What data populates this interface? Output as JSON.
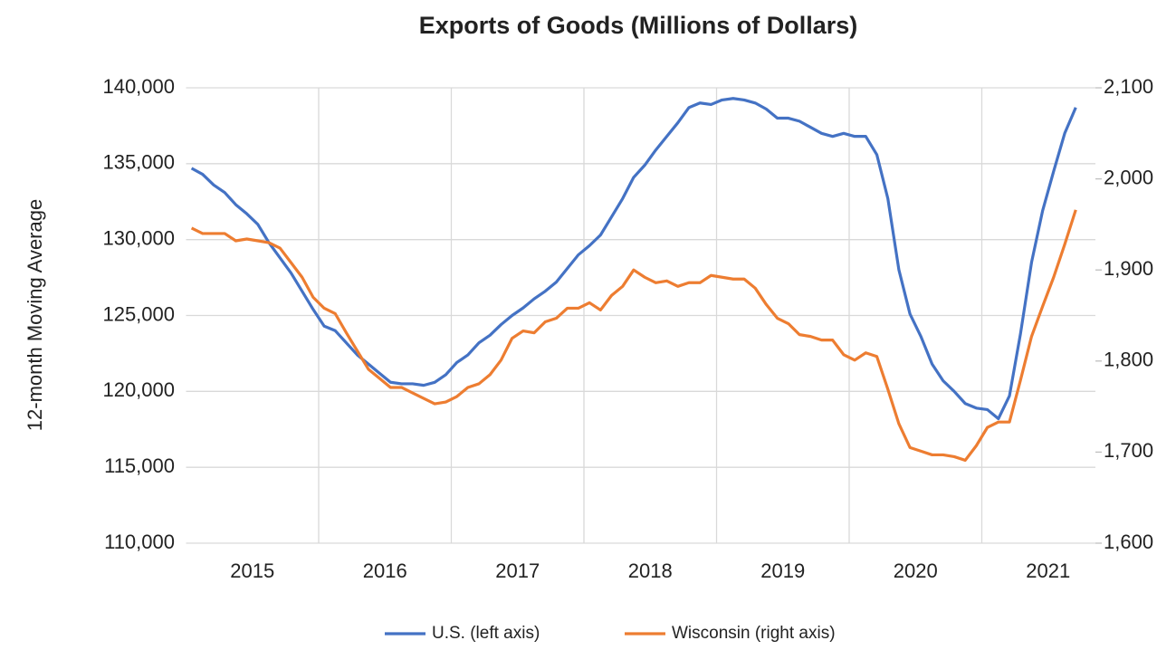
{
  "chart_data": {
    "type": "line",
    "title": "Exports of Goods (Millions of Dollars)",
    "y_label": "12-month Moving Average",
    "categories": [
      "2015",
      null,
      null,
      null,
      null,
      null,
      null,
      null,
      null,
      null,
      null,
      null,
      "2016",
      null,
      null,
      null,
      null,
      null,
      null,
      null,
      null,
      null,
      null,
      null,
      "2017",
      null,
      null,
      null,
      null,
      null,
      null,
      null,
      null,
      null,
      null,
      null,
      "2018",
      null,
      null,
      null,
      null,
      null,
      null,
      null,
      null,
      null,
      null,
      null,
      "2019",
      null,
      null,
      null,
      null,
      null,
      null,
      null,
      null,
      null,
      null,
      null,
      "2020",
      null,
      null,
      null,
      null,
      null,
      null,
      null,
      null,
      null,
      null,
      null,
      "2021",
      null,
      null,
      null,
      null,
      null,
      null,
      null,
      null
    ],
    "series": [
      {
        "name": "U.S. (left axis)",
        "color": "#4472c4",
        "values": [
          134700,
          134300,
          133600,
          133100,
          132300,
          131700,
          131000,
          129800,
          128800,
          127800,
          126600,
          125400,
          124300,
          124000,
          123200,
          122400,
          121800,
          121200,
          120600,
          120500,
          120500,
          120400,
          120600,
          121100,
          121900,
          122400,
          123200,
          123700,
          124400,
          125000,
          125500,
          126100,
          126600,
          127200,
          128100,
          129000,
          129600,
          130300,
          131500,
          132700,
          134100,
          134900,
          135900,
          136800,
          137700,
          138700,
          139000,
          138900,
          139200,
          139300,
          139200,
          139000,
          138600,
          138000,
          138000,
          137800,
          137400,
          137000,
          136800,
          137000,
          136800,
          136800,
          135600,
          132700,
          128000,
          125100,
          123600,
          121800,
          120700,
          120000,
          119200,
          118900,
          118800,
          118200,
          119700,
          123800,
          128500,
          131900,
          134500,
          137000,
          138700
        ]
      },
      {
        "name": "Wisconsin (right axis)",
        "color": "#ed7d31",
        "axis": "y2",
        "values": [
          1946,
          1940,
          1940,
          1940,
          1932,
          1934,
          1932,
          1930,
          1924,
          1908,
          1892,
          1870,
          1858,
          1852,
          1831,
          1811,
          1791,
          1781,
          1771,
          1771,
          1765,
          1759,
          1753,
          1755,
          1761,
          1771,
          1775,
          1785,
          1801,
          1825,
          1833,
          1831,
          1843,
          1847,
          1858,
          1858,
          1864,
          1856,
          1872,
          1882,
          1900,
          1892,
          1886,
          1888,
          1882,
          1886,
          1886,
          1894,
          1892,
          1890,
          1890,
          1880,
          1862,
          1847,
          1841,
          1829,
          1827,
          1823,
          1823,
          1807,
          1801,
          1809,
          1805,
          1769,
          1731,
          1705,
          1701,
          1697,
          1697,
          1695,
          1691,
          1707,
          1727,
          1733,
          1733,
          1779,
          1827,
          1860,
          1892,
          1928,
          1966
        ]
      }
    ],
    "ylim": [
      110000,
      140000
    ],
    "yticks": [
      {
        "value": 110000,
        "label": "110,000"
      },
      {
        "value": 115000,
        "label": "115,000"
      },
      {
        "value": 120000,
        "label": "120,000"
      },
      {
        "value": 125000,
        "label": "125,000"
      },
      {
        "value": 130000,
        "label": "130,000"
      },
      {
        "value": 135000,
        "label": "135,000"
      },
      {
        "value": 140000,
        "label": "140,000"
      }
    ],
    "y2lim": [
      1600,
      2100
    ],
    "y2ticks": [
      {
        "value": 1600,
        "label": "1,600"
      },
      {
        "value": 1700,
        "label": "1,700"
      },
      {
        "value": 1800,
        "label": "1,800"
      },
      {
        "value": 1900,
        "label": "1,900"
      },
      {
        "value": 2000,
        "label": "2,000"
      },
      {
        "value": 2100,
        "label": "2,100"
      }
    ],
    "grid": true,
    "legend": "bottom"
  }
}
